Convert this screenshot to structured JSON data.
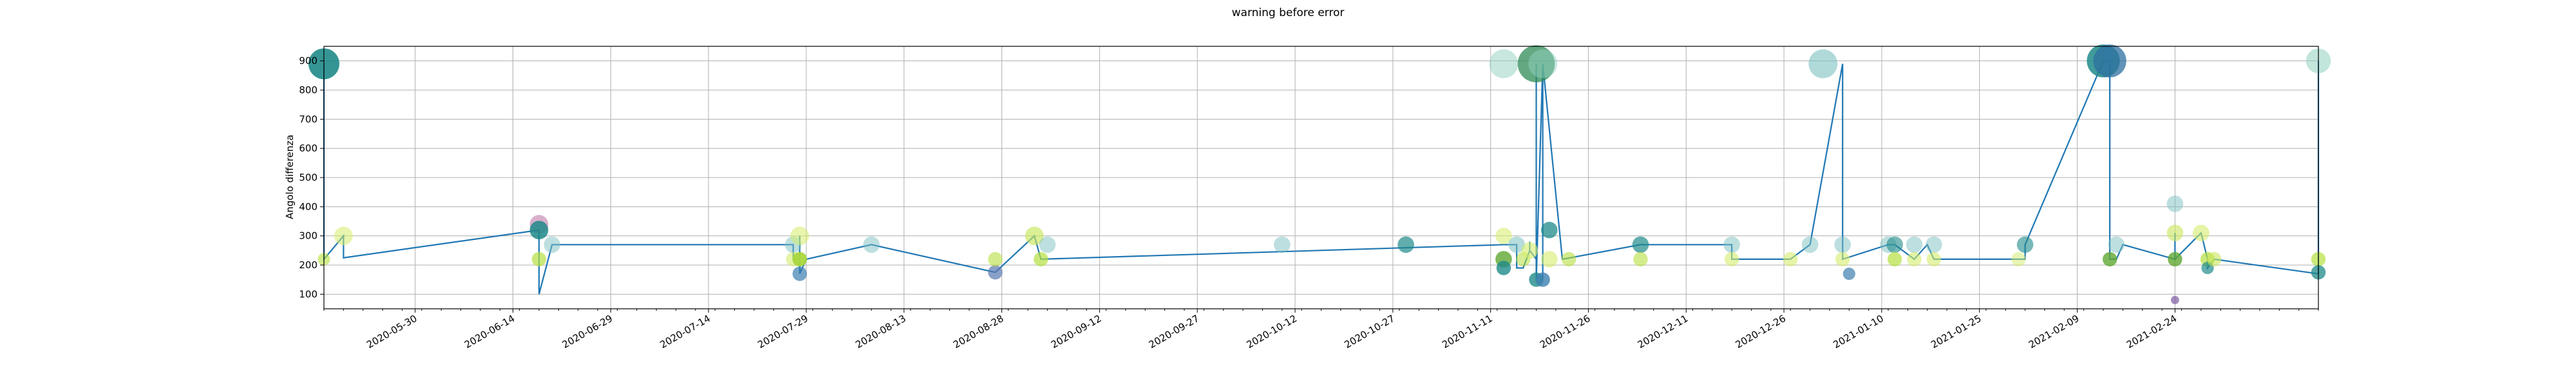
{
  "chart_data": {
    "type": "scatter",
    "title": "warning before error",
    "xlabel": "",
    "ylabel": "Angolo differenza",
    "grid": true,
    "legend": "none",
    "xlim": [
      "2020-05-16",
      "2021-03-18"
    ],
    "ylim": [
      50,
      950
    ],
    "y_ticks": [
      100,
      200,
      300,
      400,
      500,
      600,
      700,
      800,
      900
    ],
    "x_ticks": [
      "2020-05-30",
      "2020-06-14",
      "2020-06-29",
      "2020-07-14",
      "2020-07-29",
      "2020-08-13",
      "2020-08-28",
      "2020-09-12",
      "2020-09-27",
      "2020-10-12",
      "2020-10-27",
      "2020-11-11",
      "2020-11-26",
      "2020-12-11",
      "2020-12-26",
      "2021-01-10",
      "2021-01-25",
      "2021-02-09",
      "2021-02-24"
    ],
    "line_color": "#1f77b4",
    "series": [
      {
        "x": [
          "2020-05-16",
          "2020-05-16",
          "2020-05-16",
          "2020-05-19",
          "2020-05-19",
          "2020-06-18",
          "2020-06-18",
          "2020-06-18",
          "2020-06-18",
          "2020-06-20",
          "2020-07-27",
          "2020-07-27",
          "2020-07-28",
          "2020-07-28",
          "2020-07-28",
          "2020-07-29",
          "2020-08-08",
          "2020-08-27",
          "2020-09-02",
          "2020-09-03",
          "2020-11-13",
          "2020-11-15",
          "2020-11-15",
          "2020-11-16",
          "2020-11-17",
          "2020-11-17",
          "2020-11-17",
          "2020-11-18",
          "2020-11-18",
          "2020-11-18",
          "2020-11-19",
          "2020-11-19",
          "2020-11-19",
          "2020-11-22",
          "2020-12-04",
          "2020-12-18",
          "2020-12-18",
          "2020-12-27",
          "2020-12-30",
          "2021-01-04",
          "2021-01-04",
          "2021-01-11",
          "2021-01-12",
          "2021-01-15",
          "2021-01-17",
          "2021-01-18",
          "2021-01-19",
          "2021-02-01",
          "2021-02-01",
          "2021-02-13",
          "2021-02-14",
          "2021-02-14",
          "2021-02-14",
          "2021-02-15",
          "2021-02-16",
          "2021-02-24",
          "2021-02-24",
          "2021-02-24",
          "2021-02-28",
          "2021-03-01",
          "2021-03-01",
          "2021-03-02",
          "2021-03-18",
          "2021-03-18",
          "2021-03-18"
        ],
        "y": [
          890,
          890,
          220,
          300,
          225,
          320,
          320,
          160,
          100,
          270,
          270,
          220,
          220,
          300,
          170,
          220,
          270,
          175,
          300,
          220,
          270,
          270,
          190,
          190,
          250,
          280,
          250,
          220,
          890,
          150,
          890,
          150,
          890,
          220,
          270,
          270,
          220,
          220,
          270,
          890,
          220,
          270,
          270,
          220,
          270,
          220,
          220,
          220,
          270,
          900,
          900,
          900,
          220,
          220,
          270,
          220,
          310,
          220,
          310,
          220,
          190,
          220,
          170,
          220,
          900
        ]
      }
    ],
    "markers": [
      {
        "x": "2020-05-16",
        "y": 890,
        "size": 15,
        "color": "#1f8a8a",
        "alpha": 0.9
      },
      {
        "x": "2020-05-16",
        "y": 220,
        "size": 6,
        "color": "#b5df3e",
        "alpha": 0.6
      },
      {
        "x": "2020-05-19",
        "y": 300,
        "size": 9,
        "color": "#d4ec6a",
        "alpha": 0.55
      },
      {
        "x": "2020-06-18",
        "y": 340,
        "size": 9,
        "color": "#a8508e",
        "alpha": 0.45
      },
      {
        "x": "2020-06-18",
        "y": 320,
        "size": 9,
        "color": "#1f8a8a",
        "alpha": 0.85
      },
      {
        "x": "2020-06-18",
        "y": 220,
        "size": 7,
        "color": "#b5df3e",
        "alpha": 0.7
      },
      {
        "x": "2020-06-20",
        "y": 270,
        "size": 8,
        "color": "#7cc0c0",
        "alpha": 0.5
      },
      {
        "x": "2020-07-27",
        "y": 270,
        "size": 8,
        "color": "#7cc0c0",
        "alpha": 0.5
      },
      {
        "x": "2020-07-27",
        "y": 220,
        "size": 7,
        "color": "#d4ec6a",
        "alpha": 0.6
      },
      {
        "x": "2020-07-28",
        "y": 300,
        "size": 9,
        "color": "#d4ec6a",
        "alpha": 0.55
      },
      {
        "x": "2020-07-28",
        "y": 220,
        "size": 7,
        "color": "#5fa832",
        "alpha": 0.7
      },
      {
        "x": "2020-07-28",
        "y": 170,
        "size": 7,
        "color": "#3c7fb0",
        "alpha": 0.7
      },
      {
        "x": "2020-07-28",
        "y": 220,
        "size": 7,
        "color": "#b5df3e",
        "alpha": 0.8
      },
      {
        "x": "2020-08-08",
        "y": 270,
        "size": 8,
        "color": "#7cc0c0",
        "alpha": 0.5
      },
      {
        "x": "2020-08-27",
        "y": 175,
        "size": 7,
        "color": "#5a78b0",
        "alpha": 0.7
      },
      {
        "x": "2020-08-27",
        "y": 220,
        "size": 7,
        "color": "#b5df3e",
        "alpha": 0.6
      },
      {
        "x": "2020-09-02",
        "y": 300,
        "size": 9,
        "color": "#c8e65a",
        "alpha": 0.65
      },
      {
        "x": "2020-09-03",
        "y": 220,
        "size": 7,
        "color": "#b5df3e",
        "alpha": 0.7
      },
      {
        "x": "2020-09-04",
        "y": 270,
        "size": 8,
        "color": "#7cc0c0",
        "alpha": 0.5
      },
      {
        "x": "2020-10-10",
        "y": 270,
        "size": 8,
        "color": "#7cc0c0",
        "alpha": 0.5
      },
      {
        "x": "2020-10-29",
        "y": 270,
        "size": 8,
        "color": "#1f8a8a",
        "alpha": 0.7
      },
      {
        "x": "2020-11-13",
        "y": 890,
        "size": 14,
        "color": "#8fd0c0",
        "alpha": 0.5
      },
      {
        "x": "2020-11-13",
        "y": 300,
        "size": 8,
        "color": "#d4ec6a",
        "alpha": 0.55
      },
      {
        "x": "2020-11-13",
        "y": 220,
        "size": 8,
        "color": "#5fa832",
        "alpha": 0.8
      },
      {
        "x": "2020-11-13",
        "y": 190,
        "size": 7,
        "color": "#1f8a8a",
        "alpha": 0.8
      },
      {
        "x": "2020-11-15",
        "y": 270,
        "size": 8,
        "color": "#7cc0c0",
        "alpha": 0.55
      },
      {
        "x": "2020-11-16",
        "y": 220,
        "size": 7,
        "color": "#b5df3e",
        "alpha": 0.55
      },
      {
        "x": "2020-11-17",
        "y": 250,
        "size": 8,
        "color": "#d4ec6a",
        "alpha": 0.6
      },
      {
        "x": "2020-11-18",
        "y": 890,
        "size": 18,
        "color": "#2e8b57",
        "alpha": 0.75
      },
      {
        "x": "2020-11-19",
        "y": 890,
        "size": 14,
        "color": "#8fd0c0",
        "alpha": 0.5
      },
      {
        "x": "2020-11-18",
        "y": 150,
        "size": 7,
        "color": "#1f8a8a",
        "alpha": 0.8
      },
      {
        "x": "2020-11-19",
        "y": 150,
        "size": 7,
        "color": "#3c7fb0",
        "alpha": 0.8
      },
      {
        "x": "2020-11-20",
        "y": 320,
        "size": 8,
        "color": "#1f8a8a",
        "alpha": 0.75
      },
      {
        "x": "2020-11-20",
        "y": 220,
        "size": 8,
        "color": "#d4ec6a",
        "alpha": 0.6
      },
      {
        "x": "2020-11-23",
        "y": 220,
        "size": 7,
        "color": "#b5df3e",
        "alpha": 0.6
      },
      {
        "x": "2020-12-04",
        "y": 270,
        "size": 8,
        "color": "#1f8a8a",
        "alpha": 0.7
      },
      {
        "x": "2020-12-04",
        "y": 220,
        "size": 7,
        "color": "#b5df3e",
        "alpha": 0.6
      },
      {
        "x": "2020-12-18",
        "y": 270,
        "size": 8,
        "color": "#7cc0c0",
        "alpha": 0.5
      },
      {
        "x": "2020-12-18",
        "y": 220,
        "size": 7,
        "color": "#d4ec6a",
        "alpha": 0.6
      },
      {
        "x": "2020-12-27",
        "y": 220,
        "size": 7,
        "color": "#d4ec6a",
        "alpha": 0.6
      },
      {
        "x": "2020-12-30",
        "y": 270,
        "size": 8,
        "color": "#7cc0c0",
        "alpha": 0.5
      },
      {
        "x": "2021-01-01",
        "y": 890,
        "size": 14,
        "color": "#7cc0c0",
        "alpha": 0.6
      },
      {
        "x": "2021-01-04",
        "y": 270,
        "size": 8,
        "color": "#7cc0c0",
        "alpha": 0.5
      },
      {
        "x": "2021-01-04",
        "y": 220,
        "size": 7,
        "color": "#d4ec6a",
        "alpha": 0.6
      },
      {
        "x": "2021-01-05",
        "y": 170,
        "size": 6,
        "color": "#3c7fb0",
        "alpha": 0.7
      },
      {
        "x": "2021-01-11",
        "y": 270,
        "size": 8,
        "color": "#7cc0c0",
        "alpha": 0.5
      },
      {
        "x": "2021-01-12",
        "y": 270,
        "size": 8,
        "color": "#1f8a8a",
        "alpha": 0.6
      },
      {
        "x": "2021-01-12",
        "y": 220,
        "size": 7,
        "color": "#b5df3e",
        "alpha": 0.7
      },
      {
        "x": "2021-01-15",
        "y": 270,
        "size": 8,
        "color": "#7cc0c0",
        "alpha": 0.5
      },
      {
        "x": "2021-01-15",
        "y": 220,
        "size": 7,
        "color": "#d4ec6a",
        "alpha": 0.6
      },
      {
        "x": "2021-01-18",
        "y": 270,
        "size": 8,
        "color": "#7cc0c0",
        "alpha": 0.5
      },
      {
        "x": "2021-01-18",
        "y": 220,
        "size": 7,
        "color": "#d4ec6a",
        "alpha": 0.6
      },
      {
        "x": "2021-01-31",
        "y": 220,
        "size": 7,
        "color": "#d4ec6a",
        "alpha": 0.5
      },
      {
        "x": "2021-02-01",
        "y": 270,
        "size": 8,
        "color": "#1f8a8a",
        "alpha": 0.6
      },
      {
        "x": "2021-02-13",
        "y": 900,
        "size": 16,
        "color": "#1f8a8a",
        "alpha": 0.85
      },
      {
        "x": "2021-02-14",
        "y": 900,
        "size": 16,
        "color": "#2e6fa0",
        "alpha": 0.75
      },
      {
        "x": "2021-02-14",
        "y": 220,
        "size": 7,
        "color": "#5fa832",
        "alpha": 0.8
      },
      {
        "x": "2021-02-15",
        "y": 270,
        "size": 8,
        "color": "#7cc0c0",
        "alpha": 0.5
      },
      {
        "x": "2021-02-24",
        "y": 410,
        "size": 8,
        "color": "#7cc0c0",
        "alpha": 0.5
      },
      {
        "x": "2021-02-24",
        "y": 310,
        "size": 8,
        "color": "#c8e65a",
        "alpha": 0.6
      },
      {
        "x": "2021-02-24",
        "y": 220,
        "size": 7,
        "color": "#5fa832",
        "alpha": 0.8
      },
      {
        "x": "2021-02-24",
        "y": 80,
        "size": 4,
        "color": "#7a5aa0",
        "alpha": 0.7
      },
      {
        "x": "2021-02-28",
        "y": 310,
        "size": 8,
        "color": "#d4ec6a",
        "alpha": 0.6
      },
      {
        "x": "2021-03-01",
        "y": 220,
        "size": 7,
        "color": "#b5df3e",
        "alpha": 0.7
      },
      {
        "x": "2021-03-01",
        "y": 190,
        "size": 6,
        "color": "#1f8a8a",
        "alpha": 0.7
      },
      {
        "x": "2021-03-02",
        "y": 220,
        "size": 7,
        "color": "#c8e65a",
        "alpha": 0.6
      },
      {
        "x": "2021-03-18",
        "y": 900,
        "size": 12,
        "color": "#8fd0c0",
        "alpha": 0.55
      },
      {
        "x": "2021-03-18",
        "y": 220,
        "size": 7,
        "color": "#b5df3e",
        "alpha": 0.7
      },
      {
        "x": "2021-03-18",
        "y": 175,
        "size": 7,
        "color": "#1f8a8a",
        "alpha": 0.75
      }
    ]
  }
}
